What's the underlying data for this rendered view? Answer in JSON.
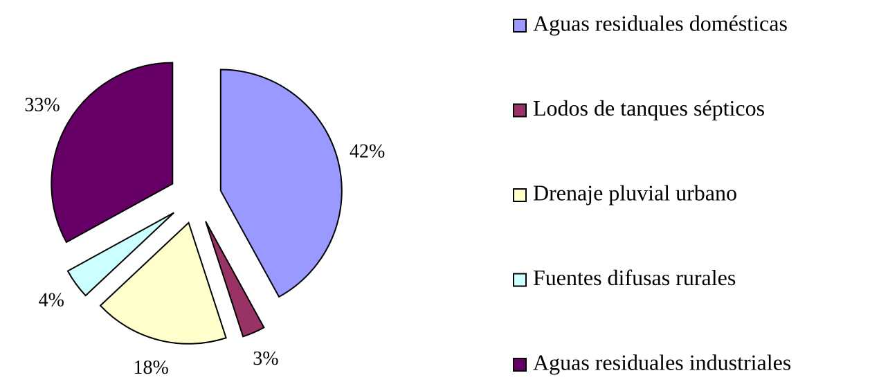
{
  "chart_data": {
    "type": "pie",
    "categories": [
      "Aguas residuales domésticas",
      "Lodos de tanques sépticos",
      "Drenaje pluvial urbano",
      "Fuentes difusas rurales",
      "Aguas residuales industriales"
    ],
    "values": [
      42,
      3,
      18,
      4,
      33
    ],
    "value_labels": [
      "42%",
      "3%",
      "18%",
      "4%",
      "33%"
    ],
    "colors": [
      "#9999ff",
      "#993366",
      "#ffffcc",
      "#ccffff",
      "#660066"
    ],
    "legend": "right"
  }
}
